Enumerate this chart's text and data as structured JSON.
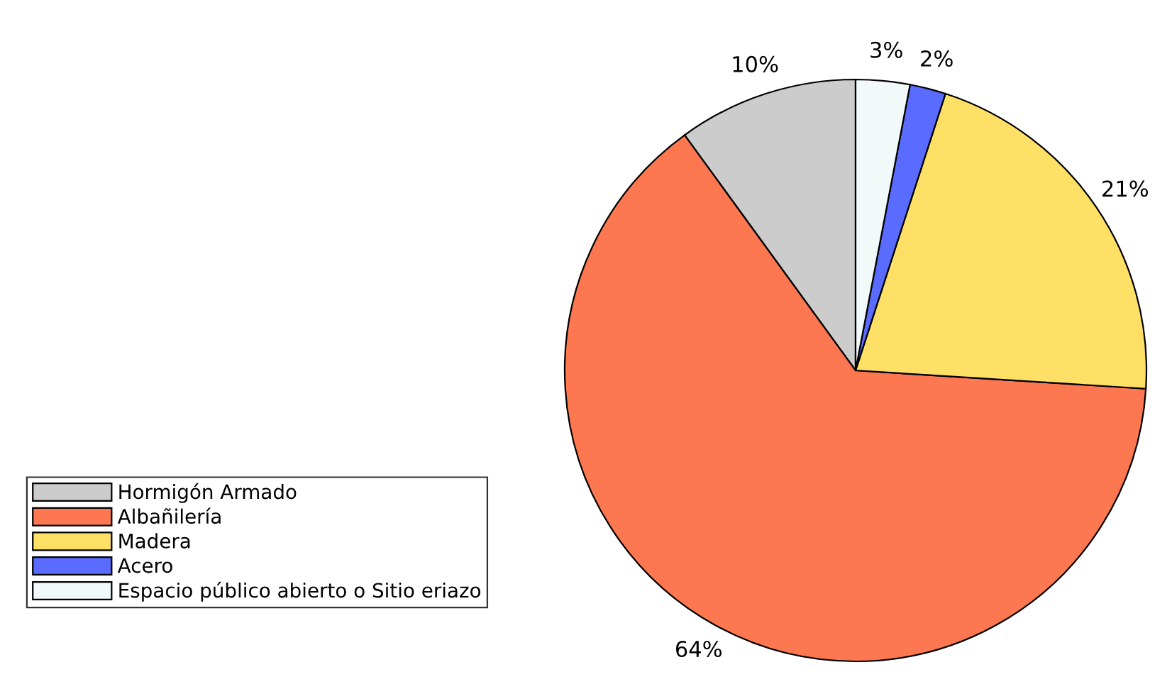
{
  "chart_data": {
    "type": "pie",
    "categories": [
      "Hormigón Armado",
      "Albañilería",
      "Madera",
      "Acero",
      "Espacio público abierto o Sitio eriazo"
    ],
    "values": [
      10,
      64,
      21,
      2,
      3
    ],
    "value_labels": [
      "10%",
      "64%",
      "21%",
      "2%",
      "3%"
    ],
    "colors": [
      "#cccccc",
      "#fd7850",
      "#ffe066",
      "#5a6bff",
      "#f2f9f9"
    ],
    "legend": "bottom left"
  }
}
